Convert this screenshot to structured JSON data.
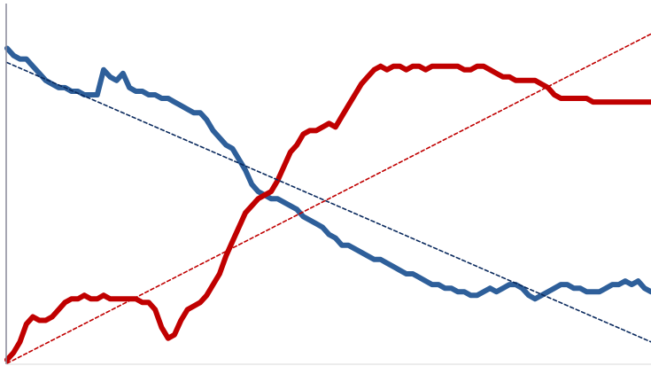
{
  "chart_data": {
    "type": "line",
    "title": "",
    "xlabel": "",
    "ylabel": "",
    "xlim": [
      0,
      100
    ],
    "ylim": [
      0,
      100
    ],
    "grid": false,
    "legend": "none",
    "axis_color": "#888899",
    "series": [
      {
        "color": "#2E5F9A",
        "kind": "data",
        "x": [
          0,
          1,
          2,
          3,
          4,
          5,
          6,
          7,
          8,
          9,
          10,
          11,
          12,
          13,
          14,
          15,
          16,
          17,
          18,
          19,
          20,
          21,
          22,
          23,
          24,
          25,
          26,
          27,
          28,
          29,
          30,
          31,
          32,
          33,
          34,
          35,
          36,
          37,
          38,
          39,
          40,
          41,
          42,
          43,
          44,
          45,
          46,
          47,
          48,
          49,
          50,
          51,
          52,
          53,
          54,
          55,
          56,
          57,
          58,
          59,
          60,
          61,
          62,
          63,
          64,
          65,
          66,
          67,
          68,
          69,
          70,
          71,
          72,
          73,
          74,
          75,
          76,
          77,
          78,
          79,
          80,
          81,
          82,
          83,
          84,
          85,
          86,
          87,
          88,
          89,
          90,
          91,
          92,
          93,
          94,
          95,
          96,
          97,
          98,
          99,
          100
        ],
        "y": [
          88,
          86,
          85,
          85,
          83,
          81,
          79,
          78,
          77,
          77,
          76,
          76,
          75,
          75,
          75,
          82,
          80,
          79,
          81,
          77,
          76,
          76,
          75,
          75,
          74,
          74,
          73,
          72,
          71,
          70,
          70,
          68,
          65,
          63,
          61,
          60,
          57,
          54,
          50,
          48,
          47,
          46,
          46,
          45,
          44,
          43,
          41,
          40,
          39,
          38,
          36,
          35,
          33,
          33,
          32,
          31,
          30,
          29,
          29,
          28,
          27,
          26,
          25,
          25,
          24,
          23,
          22,
          22,
          21,
          21,
          20,
          20,
          19,
          19,
          20,
          21,
          20,
          21,
          22,
          22,
          21,
          19,
          18,
          19,
          20,
          21,
          22,
          22,
          21,
          21,
          20,
          20,
          20,
          21,
          22,
          22,
          23,
          22,
          23,
          21,
          20
        ]
      },
      {
        "color": "#C00000",
        "kind": "data",
        "x": [
          0,
          1,
          2,
          3,
          4,
          5,
          6,
          7,
          8,
          9,
          10,
          11,
          12,
          13,
          14,
          15,
          16,
          17,
          18,
          19,
          20,
          21,
          22,
          23,
          24,
          25,
          26,
          27,
          28,
          29,
          30,
          31,
          32,
          33,
          34,
          35,
          36,
          37,
          38,
          39,
          40,
          41,
          42,
          43,
          44,
          45,
          46,
          47,
          48,
          49,
          50,
          51,
          52,
          53,
          54,
          55,
          56,
          57,
          58,
          59,
          60,
          61,
          62,
          63,
          64,
          65,
          66,
          67,
          68,
          69,
          70,
          71,
          72,
          73,
          74,
          75,
          76,
          77,
          78,
          79,
          80,
          81,
          82,
          83,
          84,
          85,
          86,
          87,
          88,
          89,
          90,
          91,
          92,
          93,
          94,
          95,
          96,
          97,
          98,
          99,
          100
        ],
        "y": [
          1,
          3,
          6,
          11,
          13,
          12,
          12,
          13,
          15,
          17,
          18,
          18,
          19,
          18,
          18,
          19,
          18,
          18,
          18,
          18,
          18,
          17,
          17,
          15,
          10,
          7,
          8,
          12,
          15,
          16,
          17,
          19,
          22,
          25,
          30,
          34,
          38,
          42,
          44,
          46,
          47,
          48,
          51,
          55,
          59,
          61,
          64,
          65,
          65,
          66,
          67,
          66,
          69,
          72,
          75,
          78,
          80,
          82,
          83,
          82,
          83,
          83,
          82,
          83,
          83,
          82,
          83,
          83,
          83,
          83,
          83,
          82,
          82,
          83,
          83,
          82,
          81,
          80,
          80,
          79,
          79,
          79,
          79,
          78,
          77,
          75,
          74,
          74,
          74,
          74,
          74,
          73,
          73,
          73,
          73,
          73,
          73,
          73,
          73,
          73,
          73
        ]
      },
      {
        "color": "#0A2A5E",
        "kind": "trend",
        "dash": "4,3",
        "x": [
          0,
          100
        ],
        "y": [
          84,
          6
        ]
      },
      {
        "color": "#C00000",
        "kind": "trend",
        "dash": "4,3",
        "x": [
          0,
          100
        ],
        "y": [
          0,
          92
        ]
      }
    ]
  }
}
